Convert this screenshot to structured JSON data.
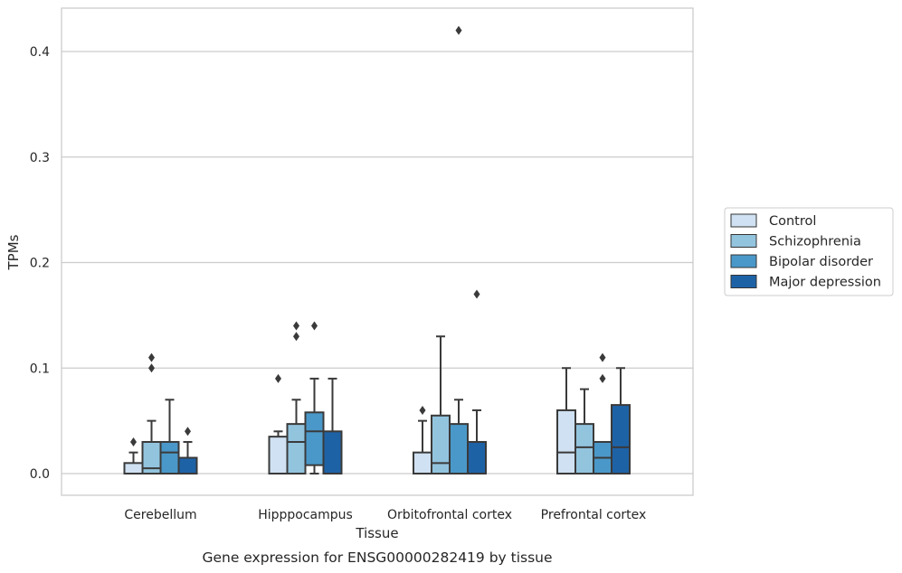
{
  "chart_data": {
    "type": "box",
    "title": "",
    "xlabel": "Tissue",
    "ylabel": "TPMs",
    "caption": "Gene expression for ENSG00000282419 by tissue",
    "categories": [
      "Cerebellum",
      "Hipppocampus",
      "Orbitofrontal cortex",
      "Prefrontal cortex"
    ],
    "ylim": [
      -0.02,
      0.44
    ],
    "yticks": [
      0.0,
      0.1,
      0.2,
      0.3,
      0.4
    ],
    "ytick_labels": [
      "0.0",
      "0.1",
      "0.2",
      "0.3",
      "0.4"
    ],
    "grid": "horizontal",
    "legend_position": "outside-right",
    "series": [
      {
        "name": "Control",
        "color": "#cfe1f2",
        "boxes": [
          {
            "q1": 0.0,
            "median": 0.0,
            "q3": 0.01,
            "whisker_low": 0.0,
            "whisker_high": 0.02,
            "outliers": [
              0.03
            ]
          },
          {
            "q1": 0.0,
            "median": 0.0,
            "q3": 0.035,
            "whisker_low": 0.0,
            "whisker_high": 0.04,
            "outliers": [
              0.09
            ]
          },
          {
            "q1": 0.0,
            "median": 0.0,
            "q3": 0.02,
            "whisker_low": 0.0,
            "whisker_high": 0.05,
            "outliers": [
              0.06
            ]
          },
          {
            "q1": 0.0,
            "median": 0.02,
            "q3": 0.06,
            "whisker_low": 0.0,
            "whisker_high": 0.1,
            "outliers": []
          }
        ]
      },
      {
        "name": "Schizophrenia",
        "color": "#93c4de",
        "boxes": [
          {
            "q1": 0.0,
            "median": 0.005,
            "q3": 0.03,
            "whisker_low": 0.0,
            "whisker_high": 0.05,
            "outliers": [
              0.1,
              0.11
            ]
          },
          {
            "q1": 0.0,
            "median": 0.03,
            "q3": 0.047,
            "whisker_low": 0.0,
            "whisker_high": 0.07,
            "outliers": [
              0.13,
              0.14
            ]
          },
          {
            "q1": 0.0,
            "median": 0.01,
            "q3": 0.055,
            "whisker_low": 0.0,
            "whisker_high": 0.13,
            "outliers": []
          },
          {
            "q1": 0.0,
            "median": 0.025,
            "q3": 0.047,
            "whisker_low": 0.0,
            "whisker_high": 0.08,
            "outliers": []
          }
        ]
      },
      {
        "name": "Bipolar disorder",
        "color": "#4a98c9",
        "boxes": [
          {
            "q1": 0.0,
            "median": 0.02,
            "q3": 0.03,
            "whisker_low": 0.0,
            "whisker_high": 0.07,
            "outliers": []
          },
          {
            "q1": 0.008,
            "median": 0.04,
            "q3": 0.058,
            "whisker_low": 0.0,
            "whisker_high": 0.09,
            "outliers": [
              0.14
            ]
          },
          {
            "q1": 0.0,
            "median": 0.0,
            "q3": 0.047,
            "whisker_low": 0.0,
            "whisker_high": 0.07,
            "outliers": [
              0.42
            ]
          },
          {
            "q1": 0.0,
            "median": 0.015,
            "q3": 0.03,
            "whisker_low": 0.0,
            "whisker_high": 0.03,
            "outliers": [
              0.09,
              0.11
            ]
          }
        ]
      },
      {
        "name": "Major depression",
        "color": "#1e62a6",
        "boxes": [
          {
            "q1": 0.0,
            "median": 0.0,
            "q3": 0.015,
            "whisker_low": 0.0,
            "whisker_high": 0.03,
            "outliers": [
              0.04
            ]
          },
          {
            "q1": 0.0,
            "median": 0.0,
            "q3": 0.04,
            "whisker_low": 0.0,
            "whisker_high": 0.09,
            "outliers": []
          },
          {
            "q1": 0.0,
            "median": 0.0,
            "q3": 0.03,
            "whisker_low": 0.0,
            "whisker_high": 0.06,
            "outliers": [
              0.17
            ]
          },
          {
            "q1": 0.0,
            "median": 0.025,
            "q3": 0.065,
            "whisker_low": 0.0,
            "whisker_high": 0.1,
            "outliers": []
          }
        ]
      }
    ]
  },
  "style": {
    "line_color": "#3a3a3a",
    "grid_color": "#cccccc",
    "frame_color": "#c8c8c8"
  }
}
